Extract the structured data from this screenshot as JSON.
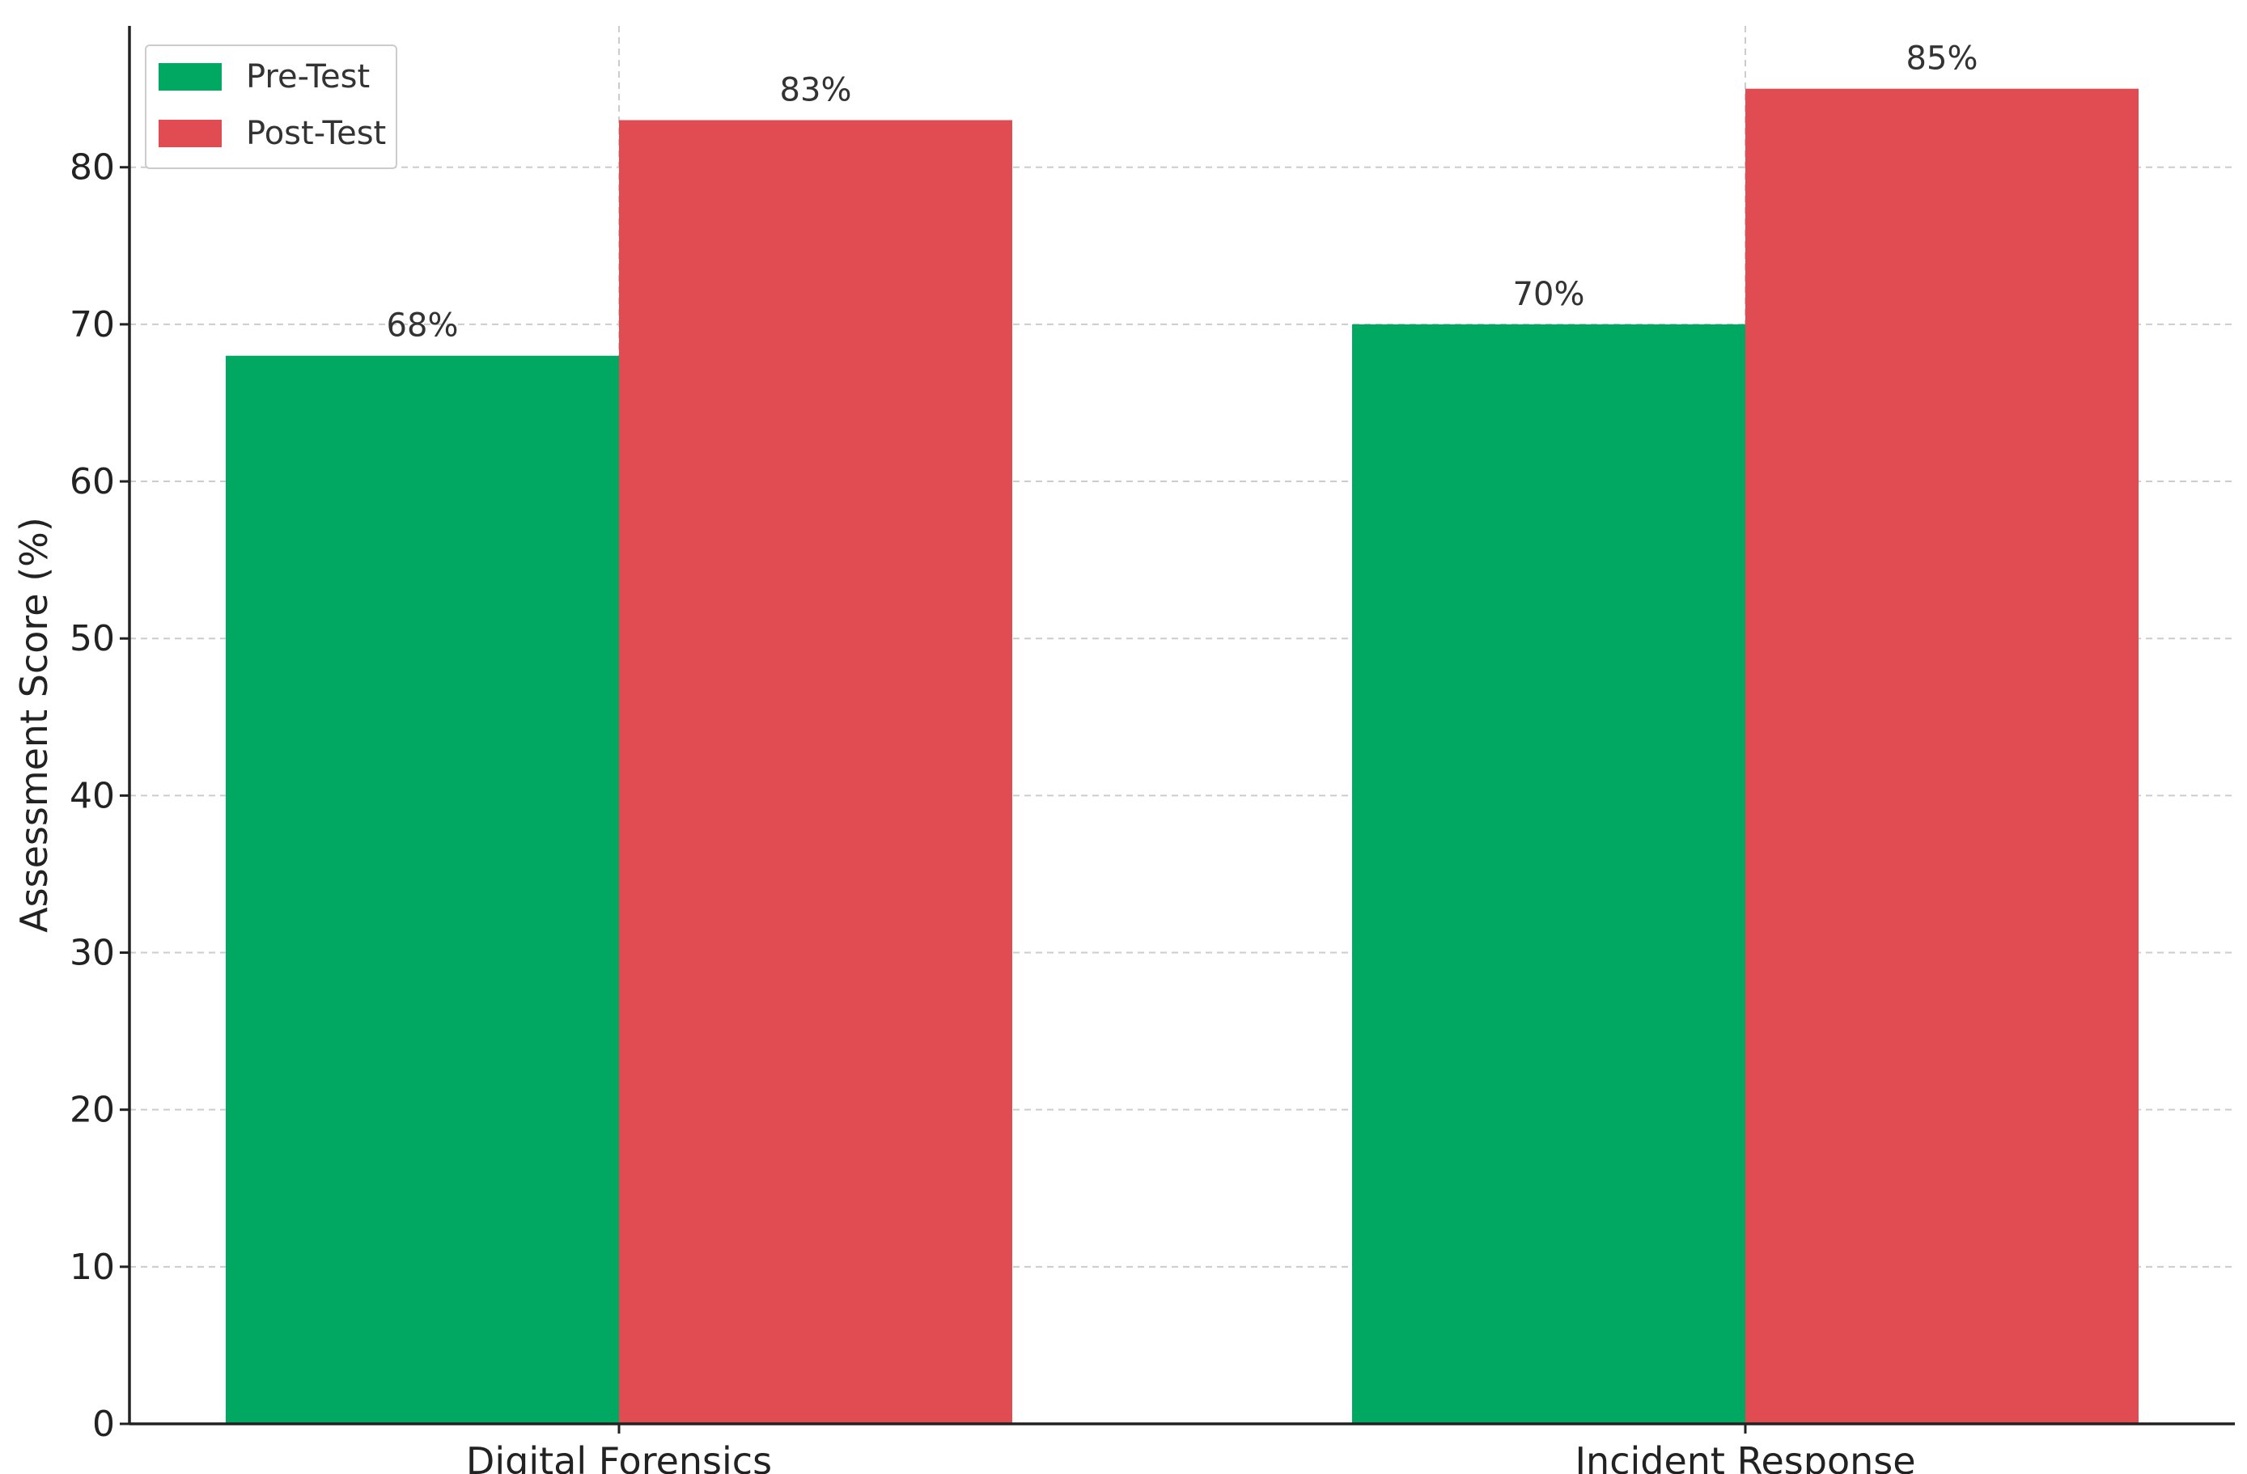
{
  "chart_data": {
    "type": "bar",
    "title": "",
    "xlabel": "",
    "ylabel": "Assessment Score (%)",
    "categories": [
      "Digital Forensics",
      "Incident Response"
    ],
    "series": [
      {
        "name": "Pre-Test",
        "values": [
          68,
          70
        ],
        "labels": [
          "68%",
          "70%"
        ],
        "color": "#00a862"
      },
      {
        "name": "Post-Test",
        "values": [
          83,
          85
        ],
        "labels": [
          "83%",
          "85%"
        ],
        "color": "#e04c52"
      }
    ],
    "yticks": [
      0,
      10,
      20,
      30,
      40,
      50,
      60,
      70,
      80
    ],
    "ylim": [
      0,
      89
    ],
    "grid": true,
    "legend_position": "top-left"
  }
}
